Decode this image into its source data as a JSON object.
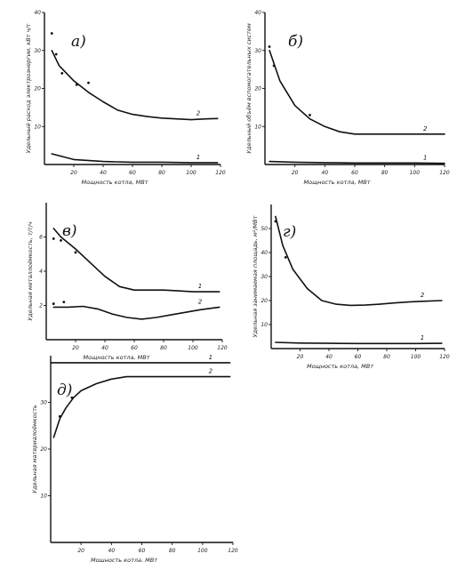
{
  "chart_data": [
    {
      "type": "line",
      "panel_label": "а)",
      "xlabel": "Мощность котла, МВт",
      "ylabel": "Удельный расход электроэнергии, кВт ч/т",
      "xlim": [
        0,
        120
      ],
      "ylim": [
        0,
        40
      ],
      "xticks": [
        "20",
        "40",
        "60",
        "80",
        "100",
        "120"
      ],
      "yticks": [
        "10",
        "20",
        "30",
        "40"
      ],
      "series": [
        {
          "name": "2",
          "x": [
            5,
            10,
            20,
            30,
            40,
            50,
            60,
            70,
            80,
            90,
            100,
            110,
            118
          ],
          "y": [
            30,
            26,
            22,
            19,
            16.5,
            14.3,
            13.2,
            12.6,
            12.2,
            12,
            11.8,
            12,
            12.1
          ]
        },
        {
          "name": "1",
          "x": [
            5,
            20,
            40,
            60,
            80,
            100,
            118
          ],
          "y": [
            2.8,
            1.3,
            0.8,
            0.6,
            0.6,
            0.5,
            0.5
          ]
        }
      ],
      "points": [
        {
          "x": 5,
          "y": 34.5
        },
        {
          "x": 8,
          "y": 29
        },
        {
          "x": 12,
          "y": 24
        },
        {
          "x": 22,
          "y": 21
        },
        {
          "x": 30,
          "y": 21.5
        }
      ]
    },
    {
      "type": "line",
      "panel_label": "б)",
      "xlabel": "Мощность котла, МВт",
      "ylabel": "Удельный объём вспомогательных систем",
      "xlim": [
        0,
        120
      ],
      "ylim": [
        0,
        40
      ],
      "xticks": [
        "20",
        "40",
        "60",
        "80",
        "100",
        "120"
      ],
      "yticks": [
        "10",
        "20",
        "30",
        "40"
      ],
      "series": [
        {
          "name": "2",
          "x": [
            3,
            10,
            20,
            30,
            40,
            50,
            60,
            70,
            80,
            90,
            100,
            110,
            120
          ],
          "y": [
            30,
            22,
            15.5,
            12,
            10,
            8.6,
            8,
            8,
            8,
            8,
            8,
            8,
            8
          ]
        },
        {
          "name": "1",
          "x": [
            3,
            20,
            40,
            60,
            80,
            100,
            120
          ],
          "y": [
            0.8,
            0.6,
            0.5,
            0.4,
            0.4,
            0.4,
            0.3
          ]
        }
      ],
      "points": [
        {
          "x": 3,
          "y": 31
        },
        {
          "x": 6,
          "y": 26
        },
        {
          "x": 30,
          "y": 13
        }
      ]
    },
    {
      "type": "line",
      "panel_label": "в)",
      "xlabel": "Мощность котла, МВт",
      "ylabel": "Удельная металлоёмкость, т/т/ч",
      "xlim": [
        0,
        120
      ],
      "ylim": [
        0,
        8
      ],
      "xticks": [
        "20",
        "40",
        "60",
        "80",
        "100",
        "120"
      ],
      "yticks": [
        "2",
        "4",
        "6"
      ],
      "series": [
        {
          "name": "1",
          "x": [
            5,
            10,
            20,
            30,
            40,
            50,
            60,
            70,
            80,
            90,
            100,
            110,
            118
          ],
          "y": [
            6.5,
            6,
            5.3,
            4.5,
            3.7,
            3.1,
            2.9,
            2.9,
            2.9,
            2.85,
            2.8,
            2.8,
            2.8
          ]
        },
        {
          "name": "2",
          "x": [
            5,
            15,
            25,
            35,
            45,
            55,
            65,
            75,
            85,
            95,
            105,
            118
          ],
          "y": [
            1.9,
            1.9,
            1.95,
            1.8,
            1.5,
            1.3,
            1.2,
            1.3,
            1.45,
            1.6,
            1.75,
            1.9
          ]
        }
      ],
      "points": [
        {
          "x": 5,
          "y": 5.9
        },
        {
          "x": 10,
          "y": 5.8
        },
        {
          "x": 20,
          "y": 5.1
        },
        {
          "x": 5,
          "y": 2.1
        },
        {
          "x": 12,
          "y": 2.2
        }
      ]
    },
    {
      "type": "line",
      "panel_label": "г)",
      "xlabel": "Мощность котла, МВт",
      "ylabel": "Удельная занимаемая площадь, м²/МВт",
      "xlim": [
        0,
        120
      ],
      "ylim": [
        0,
        60
      ],
      "xticks": [
        "20",
        "40",
        "60",
        "80",
        "100",
        "120"
      ],
      "yticks": [
        "10",
        "20",
        "30",
        "40",
        "50"
      ],
      "series": [
        {
          "name": "2",
          "x": [
            3,
            8,
            15,
            25,
            35,
            45,
            55,
            65,
            75,
            85,
            95,
            105,
            118
          ],
          "y": [
            55,
            43,
            33,
            25,
            20,
            18.5,
            18,
            18.1,
            18.5,
            19,
            19.4,
            19.7,
            20
          ]
        },
        {
          "name": "1",
          "x": [
            3,
            20,
            40,
            60,
            80,
            100,
            118
          ],
          "y": [
            2.6,
            2.3,
            2.2,
            2.1,
            2.1,
            2.1,
            2.2
          ]
        }
      ],
      "points": [
        {
          "x": 3,
          "y": 53
        },
        {
          "x": 10,
          "y": 38
        }
      ]
    },
    {
      "type": "line",
      "panel_label": "д)",
      "xlabel": "Мощность котла, МВт",
      "ylabel": "Удельная материалоёмкость",
      "xlim": [
        0,
        120
      ],
      "ylim": [
        0,
        40
      ],
      "xticks": [
        "20",
        "40",
        "60",
        "80",
        "100",
        "120"
      ],
      "yticks": [
        "10",
        "20",
        "30"
      ],
      "series": [
        {
          "name": "2",
          "x": [
            2,
            6,
            10,
            15,
            20,
            30,
            40,
            50,
            60,
            70,
            80,
            90,
            100,
            110,
            118
          ],
          "y": [
            22.5,
            26.5,
            28.8,
            31,
            32.5,
            34,
            35,
            35.5,
            35.5,
            35.5,
            35.5,
            35.5,
            35.5,
            35.5,
            35.5
          ]
        },
        {
          "name": "1",
          "x": [
            0,
            20,
            40,
            60,
            80,
            100,
            118
          ],
          "y": [
            38.5,
            38.5,
            38.5,
            38.5,
            38.5,
            38.5,
            38.5
          ]
        }
      ],
      "points": [
        {
          "x": 6,
          "y": 27
        },
        {
          "x": 14,
          "y": 31
        }
      ]
    }
  ]
}
